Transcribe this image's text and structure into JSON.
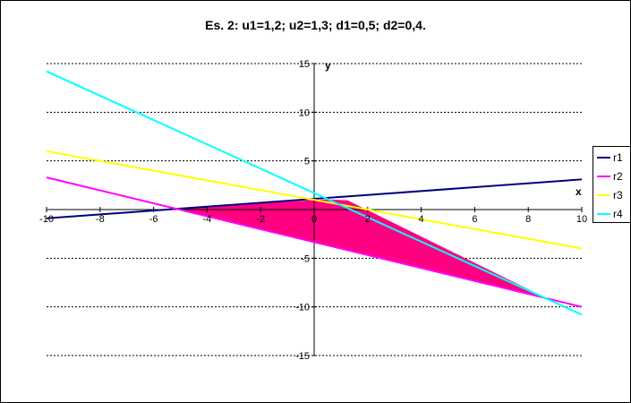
{
  "chart_data": {
    "type": "line",
    "title": "Es. 2: u1=1,2; u2=1,3; d1=0,5; d2=0,4.",
    "xlabel": "x",
    "ylabel": "y",
    "xlim": [
      -10,
      10
    ],
    "ylim": [
      -15,
      15
    ],
    "x_ticks": [
      -10,
      -8,
      -6,
      -4,
      -2,
      0,
      2,
      4,
      6,
      8,
      10
    ],
    "x_tick_labels": [
      "-10",
      "-8",
      "-6",
      "-4",
      "-2",
      "0",
      "2",
      "4",
      "6",
      "8",
      "10"
    ],
    "y_ticks": [
      -15,
      -10,
      -5,
      0,
      5,
      10,
      15
    ],
    "y_tick_labels": [
      "-15",
      "-10",
      "-5",
      "",
      "5",
      "10",
      "15"
    ],
    "grid": "horizontal-dashed",
    "legend_position": "right",
    "series": [
      {
        "name": "r1",
        "color": "#000080",
        "x": [
          -10,
          10
        ],
        "y": [
          -0.9,
          3.1
        ]
      },
      {
        "name": "r2",
        "color": "#ff00ff",
        "x": [
          -10,
          10
        ],
        "y": [
          3.3,
          -10
        ]
      },
      {
        "name": "r3",
        "color": "#ffff00",
        "x": [
          -10,
          10
        ],
        "y": [
          6,
          -4
        ]
      },
      {
        "name": "r4",
        "color": "#00ffff",
        "x": [
          -10,
          10
        ],
        "y": [
          14.2,
          -10.8
        ]
      }
    ],
    "feasible_region": {
      "color": "#ff0080",
      "x": [
        -5.1,
        0.5,
        1.25,
        8.6
      ],
      "y": [
        0.1,
        1.0,
        0.9,
        -9.05
      ]
    }
  }
}
